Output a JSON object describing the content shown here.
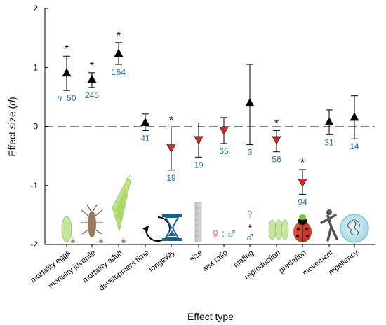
{
  "chart_data": {
    "type": "scatter",
    "subtype": "forest-plot",
    "xlabel": "Effect type",
    "ylabel_main": "Effect size (",
    "ylabel_italic": "d",
    "ylabel_close": ")",
    "ylim": [
      -2,
      2
    ],
    "yticks": [
      "2",
      "1",
      "0",
      "-1",
      "-2"
    ],
    "reference_line": 0,
    "categories": [
      "mortality eggs",
      "mortality juvenile",
      "mortality adult",
      "development time",
      "longevity",
      "size",
      "sex ratio",
      "mating",
      "reproduction",
      "predation",
      "movement",
      "repellency"
    ],
    "points": [
      {
        "effect": 0.91,
        "ci": [
          0.61,
          1.19
        ],
        "n_prefix": "n",
        "n": "=50",
        "significant": true,
        "direction": "up"
      },
      {
        "effect": 0.8,
        "ci": [
          0.66,
          0.91
        ],
        "n": "245",
        "significant": true,
        "direction": "up"
      },
      {
        "effect": 1.24,
        "ci": [
          1.05,
          1.42
        ],
        "n": "164",
        "significant": true,
        "direction": "up"
      },
      {
        "effect": 0.07,
        "ci": [
          -0.07,
          0.21
        ],
        "n": "41",
        "significant": false,
        "direction": "up"
      },
      {
        "effect": -0.37,
        "ci": [
          -0.74,
          -0.01
        ],
        "n": "19",
        "significant": true,
        "direction": "down"
      },
      {
        "effect": -0.23,
        "ci": [
          -0.52,
          0.06
        ],
        "n": "19",
        "significant": false,
        "direction": "down"
      },
      {
        "effect": -0.07,
        "ci": [
          -0.29,
          0.15
        ],
        "n": "65",
        "significant": false,
        "direction": "down"
      },
      {
        "effect": 0.4,
        "ci": [
          -0.31,
          1.05
        ],
        "n": "3",
        "significant": false,
        "direction": "up"
      },
      {
        "effect": -0.23,
        "ci": [
          -0.43,
          -0.07
        ],
        "n": "56",
        "significant": true,
        "direction": "down"
      },
      {
        "effect": -0.95,
        "ci": [
          -1.15,
          -0.73
        ],
        "n": "94",
        "significant": true,
        "direction": "down"
      },
      {
        "effect": 0.08,
        "ci": [
          -0.14,
          0.28
        ],
        "n": "31",
        "significant": false,
        "direction": "up"
      },
      {
        "effect": 0.16,
        "ci": [
          -0.21,
          0.52
        ],
        "n": "14",
        "significant": false,
        "direction": "up"
      }
    ],
    "significance_marker": "*",
    "grid": false,
    "colors": {
      "up_marker": "#000000",
      "down_marker": "#d62728",
      "n_label": "#1f77b4"
    },
    "icons": [
      "egg-icon",
      "larva-icon",
      "adult-lacewing-icon",
      "cycle-arrow-icon",
      "hourglass-icon",
      "ruler-icon",
      "sex-ratio-icon",
      "mating-icon",
      "eggs-cluster-icon",
      "ladybird-icon",
      "runner-icon",
      "petri-dish-icon"
    ],
    "sex_symbols": {
      "female": "♀",
      "male": "♂",
      "ratio_sep": ":",
      "plus": "+"
    }
  }
}
